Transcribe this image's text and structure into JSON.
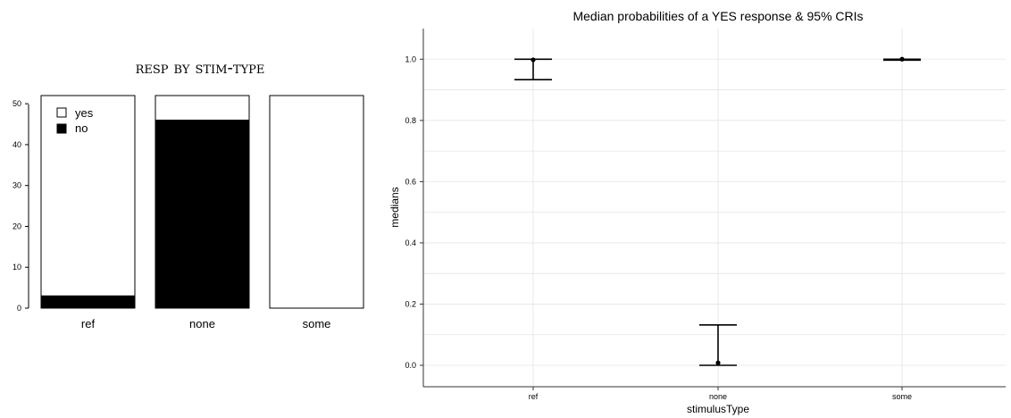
{
  "chart_data": [
    {
      "type": "bar",
      "stacked": true,
      "title": "resp by stim-type",
      "categories": [
        "ref",
        "none",
        "some"
      ],
      "series": [
        {
          "name": "no",
          "values": [
            3,
            46,
            0
          ],
          "color": "#000000"
        },
        {
          "name": "yes",
          "values": [
            49,
            6,
            52
          ],
          "color": "#ffffff"
        }
      ],
      "ylim": [
        0,
        52
      ],
      "yticks": [
        "0",
        "10",
        "20",
        "30",
        "40",
        "50"
      ],
      "ytick_values": [
        0,
        10,
        20,
        30,
        40,
        50
      ],
      "legend": {
        "position": "top-left",
        "entries": [
          {
            "label": "yes",
            "fill": "#ffffff"
          },
          {
            "label": "no",
            "fill": "#000000"
          }
        ]
      },
      "grid": false
    },
    {
      "type": "scatter",
      "title": "Median probabilities of a YES response & 95% CRIs",
      "xlabel": "stimulusType",
      "ylabel": "medians",
      "categories": [
        "ref",
        "none",
        "some"
      ],
      "points": [
        {
          "x": "ref",
          "median": 0.998,
          "lower": 0.933,
          "upper": 1.0
        },
        {
          "x": "none",
          "median": 0.008,
          "lower": 0.0,
          "upper": 0.132
        },
        {
          "x": "some",
          "median": 1.0,
          "lower": 0.997,
          "upper": 1.0
        }
      ],
      "ylim": [
        -0.07,
        1.1
      ],
      "yticks": [
        "0.0",
        "0.2",
        "0.4",
        "0.6",
        "0.8",
        "1.0"
      ],
      "ytick_values": [
        0.0,
        0.2,
        0.4,
        0.6,
        0.8,
        1.0
      ],
      "grid": true,
      "grid_color": "#e5e5e5"
    }
  ]
}
